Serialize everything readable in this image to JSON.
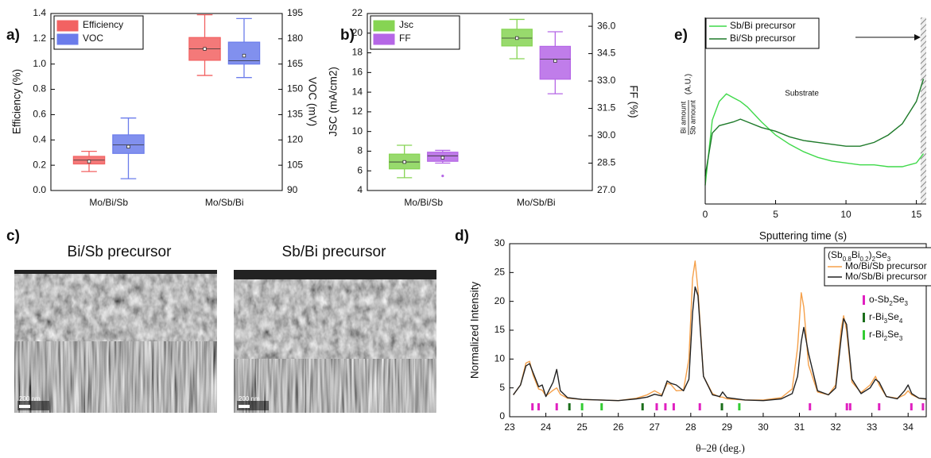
{
  "chart_data": [
    {
      "panel": "a)",
      "type": "box",
      "ylabel": "Efficiency (%)",
      "y2label": "VOC (mV)",
      "categories": [
        "Mo/Bi/Sb",
        "Mo/Sb/Bi"
      ],
      "ylim": [
        0,
        1.4
      ],
      "yticks": [
        {
          "value": 0,
          "label": "0.0"
        },
        {
          "value": 0.2,
          "label": "0.2"
        },
        {
          "value": 0.4,
          "label": "0.4"
        },
        {
          "value": 0.6,
          "label": "0.6"
        },
        {
          "value": 0.8,
          "label": "0.8"
        },
        {
          "value": 1,
          "label": "1.0"
        },
        {
          "value": 1.2,
          "label": "1.2"
        },
        {
          "value": 1.4,
          "label": "1.4"
        }
      ],
      "y2lim": [
        90,
        195
      ],
      "y2ticks": [
        90,
        105,
        120,
        135,
        150,
        165,
        180,
        195
      ],
      "legend": "upper left",
      "series": [
        {
          "name": "Efficiency",
          "color": "#f26262",
          "stats": [
            {
              "min": 0.15,
              "q1": 0.21,
              "median": 0.24,
              "q3": 0.27,
              "max": 0.31,
              "mean": 0.23
            },
            {
              "min": 0.91,
              "q1": 1.03,
              "median": 1.12,
              "q3": 1.21,
              "max": 1.39,
              "mean": 1.12
            }
          ]
        },
        {
          "name": "VOC",
          "color": "#6b7ceb",
          "axis": "y2",
          "stats": [
            {
              "min": 97,
              "q1": 112,
              "median": 117,
              "q3": 123,
              "max": 133,
              "mean": 116
            },
            {
              "min": 157,
              "q1": 165,
              "median": 167,
              "q3": 178,
              "max": 192,
              "mean": 170
            }
          ]
        }
      ]
    },
    {
      "panel": "b)",
      "type": "box",
      "ylabel": "JSC (mA/cm2)",
      "y2label": "FF (%)",
      "categories": [
        "Mo/Bi/Sb",
        "Mo/Sb/Bi"
      ],
      "ylim": [
        4,
        22
      ],
      "yticks": [
        4,
        6,
        8,
        10,
        12,
        14,
        16,
        18,
        20,
        22
      ],
      "y2lim": [
        27,
        36.7
      ],
      "y2ticks": [
        {
          "value": 27,
          "label": "27.0"
        },
        {
          "value": 28.5,
          "label": "28.5"
        },
        {
          "value": 30,
          "label": "30.0"
        },
        {
          "value": 31.5,
          "label": "31.5"
        },
        {
          "value": 33,
          "label": "33.0"
        },
        {
          "value": 34.5,
          "label": "34.5"
        },
        {
          "value": 36,
          "label": "36.0"
        }
      ],
      "legend": "upper left",
      "series": [
        {
          "name": "Jsc",
          "color": "#86d453",
          "stats": [
            {
              "min": 5.3,
              "q1": 6.2,
              "median": 6.9,
              "q3": 7.7,
              "max": 8.6,
              "mean": 6.9
            },
            {
              "min": 17.4,
              "q1": 18.7,
              "median": 19.5,
              "q3": 20.4,
              "max": 21.4,
              "mean": 19.5
            }
          ]
        },
        {
          "name": "FF",
          "color": "#b566e6",
          "axis": "y2",
          "outliers": [
            [
              27.8
            ],
            []
          ],
          "stats": [
            {
              "min": 28.5,
              "q1": 28.6,
              "median": 28.9,
              "q3": 29.1,
              "max": 29.2,
              "mean": 28.8
            },
            {
              "min": 32.3,
              "q1": 33.1,
              "median": 34.2,
              "q3": 34.9,
              "max": 35.7,
              "mean": 34.1
            }
          ]
        }
      ]
    },
    {
      "panel": "e)",
      "type": "line",
      "xlabel": "Sputtering time (s)",
      "ylabel": {
        "numerator": "Bi amount",
        "denominator": "Sb amount",
        "unit": "(A.U.)"
      },
      "annotation": "Substrate",
      "shaded_xrange": [
        15.3,
        15.7
      ],
      "xlim": [
        0,
        15.7
      ],
      "xticks": [
        0,
        5,
        10,
        15
      ],
      "ylim": [
        0,
        1
      ],
      "legend": "upper left",
      "x": [
        0,
        0.5,
        1,
        1.5,
        2,
        2.5,
        3,
        4,
        5,
        6,
        7,
        8,
        9,
        10,
        11,
        12,
        13,
        14,
        15,
        15.5
      ],
      "series": [
        {
          "name": "Sb/Bi precursor",
          "color": "#3fd94a",
          "values": [
            0.1,
            0.45,
            0.55,
            0.59,
            0.57,
            0.55,
            0.52,
            0.44,
            0.37,
            0.32,
            0.28,
            0.25,
            0.23,
            0.22,
            0.21,
            0.21,
            0.2,
            0.2,
            0.22,
            0.27
          ]
        },
        {
          "name": "Bi/Sb precursor",
          "color": "#1e7a2a",
          "values": [
            0.15,
            0.38,
            0.42,
            0.43,
            0.44,
            0.455,
            0.44,
            0.41,
            0.39,
            0.36,
            0.34,
            0.33,
            0.32,
            0.31,
            0.31,
            0.33,
            0.37,
            0.43,
            0.55,
            0.67
          ]
        }
      ]
    },
    {
      "panel": "d)",
      "type": "xrd",
      "xlabel": "θ–2θ (deg.)",
      "ylabel": "Normalized Intensity",
      "legend_title": "(Sb0.8Bi0.2)2Se3",
      "legend": "upper right",
      "xlim": [
        23,
        34.5
      ],
      "xticks": [
        23,
        24,
        25,
        26,
        27,
        28,
        29,
        30,
        31,
        32,
        33,
        34
      ],
      "ylim": [
        0,
        30
      ],
      "yticks": [
        0,
        5,
        10,
        15,
        20,
        25,
        30
      ],
      "x": [
        23.1,
        23.3,
        23.45,
        23.55,
        23.65,
        23.8,
        23.9,
        24.0,
        24.2,
        24.3,
        24.4,
        24.6,
        25,
        25.5,
        26,
        26.5,
        26.8,
        27.0,
        27.2,
        27.35,
        27.45,
        27.6,
        27.8,
        27.95,
        28.05,
        28.12,
        28.2,
        28.35,
        28.6,
        28.8,
        28.88,
        29,
        29.5,
        30,
        30.5,
        30.8,
        30.95,
        31.05,
        31.12,
        31.25,
        31.5,
        31.8,
        32.0,
        32.15,
        32.22,
        32.3,
        32.45,
        32.7,
        32.95,
        33.1,
        33.2,
        33.4,
        33.7,
        33.9,
        34.0,
        34.1,
        34.3,
        34.5
      ],
      "series": [
        {
          "name": "Mo/Bi/Sb precursor",
          "color": "#f5a04a",
          "values": [
            3.8,
            5.5,
            9.3,
            9.6,
            7.2,
            4.8,
            4.6,
            3.6,
            4.6,
            5.0,
            3.9,
            3.2,
            3.0,
            2.9,
            2.8,
            3.2,
            3.8,
            4.5,
            3.8,
            5.8,
            5.6,
            4.5,
            4.6,
            10,
            24,
            27,
            22,
            7,
            4,
            3.4,
            3.4,
            3.1,
            2.9,
            2.9,
            3.3,
            4.8,
            12,
            21.5,
            19,
            9,
            4.3,
            3.8,
            5.5,
            15,
            17.5,
            15,
            6,
            4.2,
            5.5,
            7,
            5.5,
            3.5,
            3.2,
            3.8,
            4.5,
            3.8,
            3.2,
            3.0
          ]
        },
        {
          "name": "Mo/Sb/Bi precursor",
          "color": "#222222",
          "values": [
            3.8,
            5.5,
            8.8,
            9.2,
            7.6,
            5.2,
            5.5,
            3.5,
            6,
            8.2,
            4.5,
            3.3,
            3.0,
            2.9,
            2.8,
            3.1,
            3.4,
            3.9,
            3.6,
            6.2,
            5.8,
            5.5,
            4.5,
            6.5,
            18,
            22.5,
            21,
            7,
            3.8,
            3.5,
            4.3,
            3.3,
            2.9,
            2.8,
            3.1,
            4.0,
            7,
            13,
            15.5,
            11,
            4.5,
            3.8,
            5,
            13.5,
            17,
            16,
            6.5,
            4,
            5,
            6.5,
            6,
            3.5,
            3.1,
            4.5,
            5.5,
            4,
            3.2,
            3.1
          ]
        }
      ],
      "reference_markers": [
        {
          "name": "o-Sb2Se3",
          "color": "#e020c0",
          "positions": [
            23.63,
            23.8,
            24.3,
            27.06,
            27.3,
            27.53,
            28.25,
            31.29,
            32.31,
            32.4,
            33.2,
            34.09,
            34.41
          ]
        },
        {
          "name": "r-Bi3Se4",
          "color": "#1b6e1b",
          "positions": [
            24.65,
            26.67,
            28.86
          ]
        },
        {
          "name": "r-Bi2Se3",
          "color": "#33cc33",
          "positions": [
            25.0,
            25.54,
            29.34
          ]
        }
      ]
    }
  ],
  "images": {
    "panel": "c)",
    "items": [
      {
        "title": "Bi/Sb precursor",
        "scale": "200 nm"
      },
      {
        "title": "Sb/Bi precursor",
        "scale": "200 nm"
      }
    ]
  }
}
